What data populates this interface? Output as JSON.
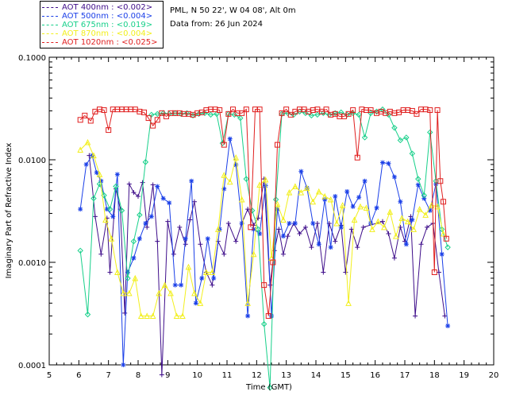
{
  "header": {
    "site_line": "PML, N 50 22', W 04 08', Alt 0m",
    "date_line": "Data from: 26 Jun 2024"
  },
  "legend": [
    {
      "label": "AOT  400nm : <0.002>",
      "color": "#3e0d8a"
    },
    {
      "label": "AOT  500nm : <0.004>",
      "color": "#1a3fe8"
    },
    {
      "label": "AOT  675nm : <0.019>",
      "color": "#17d08a"
    },
    {
      "label": "AOT  870nm : <0.004>",
      "color": "#f2ef1c"
    },
    {
      "label": "AOT 1020nm : <0.025>",
      "color": "#e01f1f"
    }
  ],
  "chart_data": {
    "type": "line",
    "title": "",
    "xlabel": "Time (GMT)",
    "ylabel": "Imaginary Part of Refractive Index",
    "xlim": [
      5,
      20
    ],
    "ylim": [
      0.0001,
      0.1
    ],
    "yscale": "log",
    "xticks": [
      "5",
      "6",
      "7",
      "8",
      "9",
      "10",
      "11",
      "12",
      "13",
      "14",
      "15",
      "16",
      "17",
      "18",
      "19",
      "20"
    ],
    "yticks": [
      "0.0001",
      "0.0010",
      "0.0100",
      "0.1000"
    ],
    "series": [
      {
        "name": "AOT 400nm",
        "color": "#3e0d8a",
        "marker": "plus",
        "x": [
          6.35,
          6.55,
          6.75,
          6.95,
          7.05,
          7.25,
          7.4,
          7.55,
          7.7,
          7.85,
          8.0,
          8.15,
          8.3,
          8.5,
          8.65,
          8.8,
          9.0,
          9.2,
          9.4,
          9.6,
          9.75,
          9.9,
          10.1,
          10.3,
          10.5,
          10.7,
          10.9,
          11.05,
          11.3,
          11.5,
          11.7,
          11.9,
          12.05,
          12.25,
          12.45,
          12.6,
          12.75,
          12.9,
          13.05,
          13.25,
          13.45,
          13.65,
          13.85,
          14.05,
          14.25,
          14.45,
          14.65,
          14.85,
          15.0,
          15.2,
          15.4,
          15.6,
          16.25,
          16.45,
          16.65,
          16.85,
          17.0,
          17.2,
          17.35,
          17.55,
          17.75,
          17.95,
          18.15,
          18.35
        ],
        "y": [
          0.011,
          0.0028,
          0.0012,
          0.0027,
          0.0008,
          0.0052,
          0.0033,
          0.00032,
          0.0058,
          0.0048,
          0.0044,
          0.006,
          0.0022,
          0.0057,
          0.0016,
          8e-05,
          0.0025,
          0.0012,
          0.0022,
          0.0015,
          0.0026,
          0.0039,
          0.0015,
          0.0008,
          0.0006,
          0.0016,
          0.0012,
          0.0024,
          0.0016,
          0.0024,
          0.0033,
          0.0023,
          0.0027,
          0.0065,
          0.0006,
          0.0013,
          0.0021,
          0.0012,
          0.0018,
          0.0024,
          0.0019,
          0.0022,
          0.0014,
          0.0024,
          0.0008,
          0.0024,
          0.0016,
          0.0023,
          0.0008,
          0.0021,
          0.0014,
          0.0022,
          0.0025,
          0.0019,
          0.0011,
          0.0022,
          0.0016,
          0.0028,
          0.0003,
          0.0015,
          0.0022,
          0.0024,
          0.0008,
          0.0003
        ]
      },
      {
        "name": "AOT 500nm",
        "color": "#1a3fe8",
        "marker": "star",
        "x": [
          6.05,
          6.25,
          6.45,
          6.6,
          6.75,
          6.95,
          7.15,
          7.3,
          7.5,
          7.65,
          7.85,
          8.05,
          8.25,
          8.45,
          8.65,
          8.85,
          9.05,
          9.25,
          9.45,
          9.6,
          9.8,
          9.95,
          10.15,
          10.35,
          10.55,
          10.75,
          10.9,
          11.1,
          11.3,
          11.5,
          11.7,
          11.9,
          12.1,
          12.3,
          12.5,
          12.7,
          12.9,
          13.1,
          13.3,
          13.5,
          13.7,
          13.9,
          14.1,
          14.3,
          14.5,
          14.65,
          14.85,
          15.05,
          15.25,
          15.45,
          15.65,
          15.85,
          16.05,
          16.25,
          16.45,
          16.65,
          16.85,
          17.05,
          17.25,
          17.45,
          17.65,
          17.85,
          18.05,
          18.25,
          18.45
        ],
        "y": [
          0.0033,
          0.009,
          0.011,
          0.0075,
          0.0062,
          0.0033,
          0.0028,
          0.0072,
          0.0001,
          0.0008,
          0.0011,
          0.0017,
          0.0024,
          0.0028,
          0.0055,
          0.0042,
          0.0038,
          0.0006,
          0.0006,
          0.0017,
          0.0062,
          0.0004,
          0.0007,
          0.0017,
          0.0007,
          0.0021,
          0.0052,
          0.016,
          0.0089,
          0.0024,
          0.0003,
          0.0021,
          0.0019,
          0.0056,
          0.0003,
          0.0033,
          0.0018,
          0.0024,
          0.0024,
          0.0077,
          0.0053,
          0.0024,
          0.0015,
          0.0041,
          0.0014,
          0.0044,
          0.0022,
          0.0049,
          0.0035,
          0.0043,
          0.0062,
          0.0024,
          0.0034,
          0.0094,
          0.0092,
          0.0068,
          0.0039,
          0.0015,
          0.0026,
          0.0057,
          0.0042,
          0.0032,
          0.0058,
          0.0012,
          0.00024
        ]
      },
      {
        "name": "AOT 675nm",
        "color": "#17d08a",
        "marker": "diamond",
        "x": [
          6.05,
          6.3,
          6.5,
          6.7,
          6.85,
          7.05,
          7.25,
          7.45,
          7.65,
          7.85,
          8.05,
          8.25,
          8.45,
          8.65,
          8.85,
          9.05,
          9.25,
          9.45,
          9.65,
          9.85,
          10.05,
          10.25,
          10.45,
          10.65,
          10.85,
          11.05,
          11.25,
          11.45,
          11.65,
          11.85,
          12.05,
          12.25,
          12.45,
          12.65,
          12.85,
          13.05,
          13.25,
          13.45,
          13.65,
          13.85,
          14.05,
          14.25,
          14.45,
          14.65,
          14.85,
          15.05,
          15.25,
          15.45,
          15.65,
          15.85,
          16.05,
          16.25,
          16.45,
          16.65,
          16.85,
          17.05,
          17.25,
          17.45,
          17.65,
          17.85,
          18.05,
          18.25,
          18.45
        ],
        "y": [
          0.0013,
          0.00031,
          0.0042,
          0.0058,
          0.0045,
          0.0033,
          0.0055,
          0.0032,
          0.0007,
          0.0016,
          0.0029,
          0.0095,
          0.0275,
          0.028,
          0.0285,
          0.028,
          0.0285,
          0.028,
          0.0285,
          0.027,
          0.028,
          0.0285,
          0.0275,
          0.028,
          0.0145,
          0.028,
          0.0275,
          0.0255,
          0.0065,
          0.0032,
          0.0021,
          0.00025,
          6e-05,
          0.0041,
          0.028,
          0.0285,
          0.0275,
          0.0295,
          0.0285,
          0.027,
          0.0275,
          0.0285,
          0.0275,
          0.0285,
          0.029,
          0.0275,
          0.0285,
          0.0275,
          0.0165,
          0.0285,
          0.0295,
          0.031,
          0.0275,
          0.0205,
          0.0155,
          0.0165,
          0.0115,
          0.0065,
          0.0045,
          0.0185,
          0.0062,
          0.0021,
          0.0014
        ]
      },
      {
        "name": "AOT 870nm",
        "color": "#f2ef1c",
        "marker": "triangle",
        "x": [
          6.05,
          6.3,
          6.5,
          6.7,
          6.9,
          7.1,
          7.3,
          7.5,
          7.7,
          7.9,
          8.1,
          8.3,
          8.5,
          8.7,
          8.9,
          9.1,
          9.3,
          9.5,
          9.7,
          9.9,
          10.1,
          10.3,
          10.5,
          10.7,
          10.9,
          11.1,
          11.3,
          11.5,
          11.7,
          11.9,
          12.1,
          12.3,
          12.5,
          12.7,
          12.9,
          13.1,
          13.3,
          13.5,
          13.7,
          13.9,
          14.1,
          14.3,
          14.5,
          14.7,
          14.9,
          15.1,
          15.3,
          15.5,
          15.7,
          15.9,
          16.1,
          16.3,
          16.5,
          16.7,
          16.9,
          17.1,
          17.3,
          17.5,
          17.7,
          17.9,
          18.1,
          18.3
        ],
        "y": [
          0.0125,
          0.0148,
          0.011,
          0.0072,
          0.0026,
          0.0017,
          0.0008,
          0.0005,
          0.0005,
          0.0007,
          0.0003,
          0.0003,
          0.0003,
          0.0005,
          0.0006,
          0.0005,
          0.0003,
          0.0003,
          0.0009,
          0.0005,
          0.0004,
          0.0008,
          0.0008,
          0.0021,
          0.0071,
          0.0061,
          0.0105,
          0.0041,
          0.0004,
          0.0012,
          0.0057,
          0.0064,
          0.0011,
          0.0037,
          0.0026,
          0.0048,
          0.0055,
          0.0048,
          0.0053,
          0.0039,
          0.0049,
          0.0044,
          0.0041,
          0.0024,
          0.0036,
          0.0004,
          0.0026,
          0.0035,
          0.0034,
          0.0021,
          0.0025,
          0.0022,
          0.0031,
          0.0018,
          0.0027,
          0.0025,
          0.0021,
          0.0033,
          0.0029,
          0.0036,
          0.0035,
          0.0019
        ]
      },
      {
        "name": "AOT 1020nm",
        "color": "#e01f1f",
        "marker": "square",
        "x": [
          6.05,
          6.2,
          6.4,
          6.55,
          6.7,
          6.85,
          7.0,
          7.15,
          7.3,
          7.45,
          7.6,
          7.75,
          7.9,
          8.05,
          8.2,
          8.35,
          8.5,
          8.65,
          8.8,
          8.95,
          9.1,
          9.25,
          9.4,
          9.55,
          9.7,
          9.85,
          10.0,
          10.15,
          10.3,
          10.45,
          10.6,
          10.75,
          10.9,
          11.05,
          11.2,
          11.35,
          11.5,
          11.65,
          11.8,
          11.95,
          12.1,
          12.25,
          12.4,
          12.55,
          12.7,
          12.85,
          13.0,
          13.15,
          13.3,
          13.45,
          13.6,
          13.75,
          13.9,
          14.05,
          14.2,
          14.35,
          14.5,
          14.65,
          14.8,
          14.95,
          15.1,
          15.25,
          15.4,
          15.55,
          15.7,
          15.85,
          16.05,
          16.2,
          16.35,
          16.5,
          16.65,
          16.8,
          16.95,
          17.1,
          17.25,
          17.4,
          17.55,
          17.7,
          17.85,
          18.0,
          18.1,
          18.2,
          18.3,
          18.4
        ],
        "y": [
          0.0245,
          0.027,
          0.024,
          0.0295,
          0.031,
          0.0305,
          0.0195,
          0.031,
          0.031,
          0.031,
          0.031,
          0.031,
          0.031,
          0.0295,
          0.029,
          0.0255,
          0.0215,
          0.0245,
          0.0285,
          0.0265,
          0.0285,
          0.0285,
          0.0285,
          0.028,
          0.028,
          0.0275,
          0.0285,
          0.029,
          0.0305,
          0.031,
          0.031,
          0.0305,
          0.014,
          0.028,
          0.031,
          0.0285,
          0.0285,
          0.031,
          0.0022,
          0.031,
          0.031,
          0.0006,
          0.0003,
          0.001,
          0.014,
          0.0285,
          0.031,
          0.0275,
          0.0295,
          0.031,
          0.031,
          0.0295,
          0.0305,
          0.031,
          0.0295,
          0.031,
          0.0275,
          0.028,
          0.0265,
          0.0265,
          0.028,
          0.0305,
          0.0105,
          0.031,
          0.0305,
          0.0305,
          0.0285,
          0.0295,
          0.0285,
          0.0295,
          0.0285,
          0.029,
          0.0305,
          0.0305,
          0.03,
          0.028,
          0.031,
          0.031,
          0.0305,
          0.0008,
          0.0305,
          0.0062,
          0.0039,
          0.0017
        ]
      }
    ]
  }
}
